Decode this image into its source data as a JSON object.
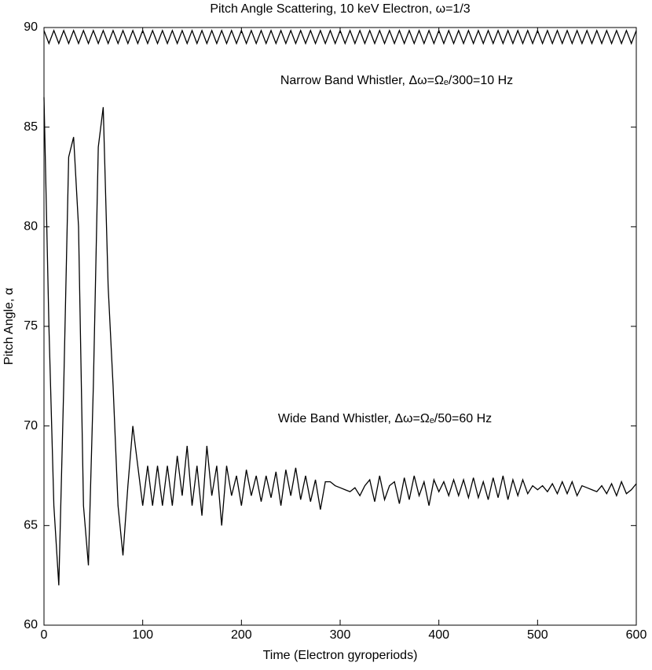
{
  "chart_data": {
    "type": "line",
    "title": "Pitch Angle Scattering, 10 keV Electron, ω=1/3",
    "xlabel": "Time (Electron gyroperiods)",
    "ylabel": "Pitch Angle, α",
    "annotations": [
      "Narrow Band Whistler, Δω=Ωₑ/300=10 Hz",
      "Wide Band Whistler, Δω=Ωₑ/50=60 Hz"
    ],
    "xlim": [
      0,
      600
    ],
    "xticks": [
      0,
      100,
      200,
      300,
      400,
      500,
      600
    ],
    "ylim": [
      60,
      90
    ],
    "yticks": [
      60,
      65,
      70,
      75,
      80,
      85,
      90
    ],
    "x": [
      0,
      5,
      10,
      15,
      20,
      25,
      30,
      35,
      40,
      45,
      50,
      55,
      60,
      65,
      70,
      75,
      80,
      85,
      90,
      95,
      100,
      105,
      110,
      115,
      120,
      125,
      130,
      135,
      140,
      145,
      150,
      155,
      160,
      165,
      170,
      175,
      180,
      185,
      190,
      195,
      200,
      205,
      210,
      215,
      220,
      225,
      230,
      235,
      240,
      245,
      250,
      255,
      260,
      265,
      270,
      275,
      280,
      285,
      290,
      295,
      300,
      305,
      310,
      315,
      320,
      325,
      330,
      335,
      340,
      345,
      350,
      355,
      360,
      365,
      370,
      375,
      380,
      385,
      390,
      395,
      400,
      405,
      410,
      415,
      420,
      425,
      430,
      435,
      440,
      445,
      450,
      455,
      460,
      465,
      470,
      475,
      480,
      485,
      490,
      495,
      500,
      505,
      510,
      515,
      520,
      525,
      530,
      535,
      540,
      545,
      550,
      555,
      560,
      565,
      570,
      575,
      580,
      585,
      590,
      595,
      600
    ],
    "series": [
      {
        "color": "#000000",
        "values": [
          89.85,
          89.2,
          89.85,
          89.2,
          89.85,
          89.2,
          89.85,
          89.2,
          89.85,
          89.2,
          89.85,
          89.2,
          89.85,
          89.2,
          89.85,
          89.2,
          89.85,
          89.2,
          89.85,
          89.2,
          89.85,
          89.2,
          89.85,
          89.2,
          89.85,
          89.2,
          89.85,
          89.2,
          89.85,
          89.2,
          89.85,
          89.2,
          89.85,
          89.2,
          89.85,
          89.2,
          89.85,
          89.2,
          89.85,
          89.2,
          89.85,
          89.2,
          89.85,
          89.2,
          89.85,
          89.2,
          89.85,
          89.2,
          89.85,
          89.2,
          89.85,
          89.2,
          89.85,
          89.2,
          89.85,
          89.2,
          89.85,
          89.2,
          89.85,
          89.2,
          89.85,
          89.2,
          89.85,
          89.2,
          89.85,
          89.2,
          89.85,
          89.2,
          89.85,
          89.2,
          89.85,
          89.2,
          89.85,
          89.2,
          89.85,
          89.2,
          89.85,
          89.2,
          89.85,
          89.2,
          89.85,
          89.2,
          89.85,
          89.2,
          89.85,
          89.2,
          89.85,
          89.2,
          89.85,
          89.2,
          89.85,
          89.2,
          89.85,
          89.2,
          89.85,
          89.2,
          89.85,
          89.2,
          89.85,
          89.2,
          89.85,
          89.2,
          89.85,
          89.2,
          89.85,
          89.2,
          89.85,
          89.2,
          89.85,
          89.2,
          89.85,
          89.2,
          89.85,
          89.2,
          89.85,
          89.2,
          89.85,
          89.2,
          89.85,
          89.2,
          89.85
        ]
      },
      {
        "color": "#000000",
        "values": [
          86.5,
          75,
          66,
          62,
          72,
          83.5,
          84.5,
          80,
          66,
          63,
          72,
          84,
          86,
          77,
          72,
          66,
          63.5,
          67,
          70,
          68,
          66,
          68,
          66,
          68,
          66,
          68,
          66,
          68.5,
          66.5,
          69,
          66,
          68,
          65.5,
          69,
          66.5,
          68,
          65,
          68,
          66.5,
          67.5,
          66,
          67.8,
          66.5,
          67.5,
          66.2,
          67.5,
          66.4,
          67.7,
          66,
          67.8,
          66.5,
          67.9,
          66.3,
          67.5,
          66.2,
          67.3,
          65.8,
          67.2,
          67.2,
          67.0,
          66.9,
          66.8,
          66.7,
          66.9,
          66.5,
          67,
          67.3,
          66.2,
          67.5,
          66.3,
          67,
          67.2,
          66.1,
          67.4,
          66.3,
          67.5,
          66.5,
          67.2,
          66,
          67.3,
          66.7,
          67.2,
          66.5,
          67.3,
          66.5,
          67.3,
          66.4,
          67.4,
          66.4,
          67.2,
          66.3,
          67.4,
          66.4,
          67.5,
          66.3,
          67.3,
          66.5,
          67.3,
          66.6,
          67,
          66.8,
          67,
          66.7,
          67.1,
          66.6,
          67.2,
          66.6,
          67.2,
          66.5,
          67,
          66.9,
          66.8,
          66.7,
          67,
          66.6,
          67.1,
          66.5,
          67.2,
          66.6,
          66.8,
          67.1
        ]
      }
    ]
  }
}
